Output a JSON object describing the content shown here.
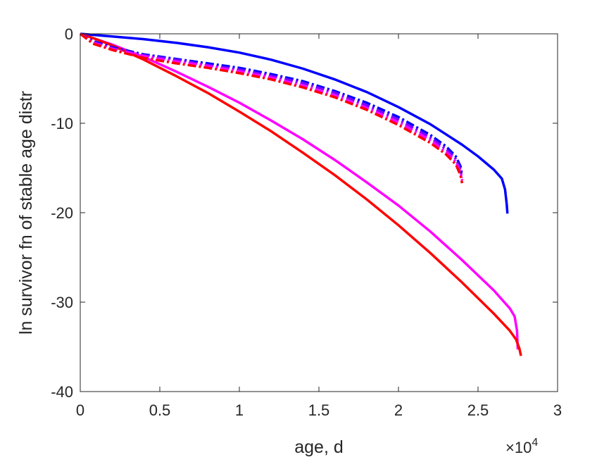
{
  "chart_data": {
    "type": "line",
    "title": "",
    "xlabel": "age, d",
    "ylabel": "ln survivor fn of stable age distr",
    "x_multiplier": "×10",
    "x_multiplier_exp": "4",
    "xlim": [
      0,
      30000
    ],
    "ylim": [
      -40,
      0
    ],
    "xticks": [
      0,
      5000,
      10000,
      15000,
      20000,
      25000,
      30000
    ],
    "xtick_labels": [
      "0",
      "0.5",
      "1",
      "1.5",
      "2",
      "2.5",
      "3"
    ],
    "yticks": [
      0,
      -10,
      -20,
      -30,
      -40
    ],
    "ytick_labels": [
      "0",
      "-10",
      "-20",
      "-30",
      "-40"
    ],
    "grid": false,
    "legend": "none",
    "series": [
      {
        "color": "#0000ff",
        "style": "solid",
        "points": [
          [
            0,
            0
          ],
          [
            2000,
            -0.3
          ],
          [
            4000,
            -0.6
          ],
          [
            6000,
            -1.0
          ],
          [
            8000,
            -1.5
          ],
          [
            10000,
            -2.1
          ],
          [
            12000,
            -2.9
          ],
          [
            14000,
            -3.9
          ],
          [
            16000,
            -5.1
          ],
          [
            18000,
            -6.5
          ],
          [
            20000,
            -8.2
          ],
          [
            22000,
            -10.1
          ],
          [
            24000,
            -12.4
          ],
          [
            25000,
            -13.7
          ],
          [
            26000,
            -15.2
          ],
          [
            26500,
            -16.2
          ],
          [
            26700,
            -17.4
          ],
          [
            26800,
            -19.0
          ],
          [
            26850,
            -20.1
          ]
        ]
      },
      {
        "color": "#ff00ff",
        "style": "solid",
        "points": [
          [
            0,
            0
          ],
          [
            1000,
            -0.6
          ],
          [
            2000,
            -1.2
          ],
          [
            4000,
            -2.6
          ],
          [
            6000,
            -4.2
          ],
          [
            8000,
            -5.9
          ],
          [
            10000,
            -7.7
          ],
          [
            12000,
            -9.7
          ],
          [
            14000,
            -11.8
          ],
          [
            16000,
            -14.1
          ],
          [
            18000,
            -16.6
          ],
          [
            20000,
            -19.2
          ],
          [
            22000,
            -22.1
          ],
          [
            24000,
            -25.3
          ],
          [
            26000,
            -28.7
          ],
          [
            27000,
            -30.7
          ],
          [
            27300,
            -31.6
          ],
          [
            27450,
            -33.2
          ],
          [
            27500,
            -35.3
          ]
        ]
      },
      {
        "color": "#ff0000",
        "style": "solid",
        "points": [
          [
            0,
            0
          ],
          [
            1000,
            -0.6
          ],
          [
            2000,
            -1.3
          ],
          [
            4000,
            -2.9
          ],
          [
            6000,
            -4.7
          ],
          [
            8000,
            -6.6
          ],
          [
            10000,
            -8.7
          ],
          [
            12000,
            -10.9
          ],
          [
            14000,
            -13.3
          ],
          [
            16000,
            -15.8
          ],
          [
            18000,
            -18.5
          ],
          [
            20000,
            -21.4
          ],
          [
            22000,
            -24.5
          ],
          [
            24000,
            -27.8
          ],
          [
            26000,
            -31.3
          ],
          [
            27000,
            -33.2
          ],
          [
            27400,
            -34.2
          ],
          [
            27600,
            -35.2
          ],
          [
            27700,
            -36.0
          ]
        ]
      },
      {
        "color": "#0000ff",
        "style": "dashdot",
        "points": [
          [
            0,
            0
          ],
          [
            800,
            -0.8
          ],
          [
            2000,
            -1.5
          ],
          [
            4000,
            -2.3
          ],
          [
            6000,
            -2.8
          ],
          [
            8000,
            -3.3
          ],
          [
            10000,
            -3.8
          ],
          [
            12000,
            -4.5
          ],
          [
            14000,
            -5.3
          ],
          [
            16000,
            -6.4
          ],
          [
            18000,
            -7.7
          ],
          [
            20000,
            -9.3
          ],
          [
            22000,
            -11.3
          ],
          [
            23000,
            -12.6
          ],
          [
            23600,
            -13.7
          ],
          [
            23900,
            -14.8
          ],
          [
            24000,
            -15.8
          ]
        ]
      },
      {
        "color": "#8000ff",
        "style": "dashdot",
        "points": [
          [
            0,
            0
          ],
          [
            800,
            -0.9
          ],
          [
            2000,
            -1.6
          ],
          [
            4000,
            -2.4
          ],
          [
            6000,
            -2.9
          ],
          [
            8000,
            -3.5
          ],
          [
            10000,
            -4.0
          ],
          [
            12000,
            -4.7
          ],
          [
            14000,
            -5.5
          ],
          [
            16000,
            -6.6
          ],
          [
            18000,
            -8.0
          ],
          [
            20000,
            -9.6
          ],
          [
            22000,
            -11.6
          ],
          [
            23000,
            -12.9
          ],
          [
            23600,
            -14.0
          ],
          [
            23900,
            -15.2
          ],
          [
            24000,
            -16.1
          ]
        ]
      },
      {
        "color": "#ff00ff",
        "style": "dashdot",
        "points": [
          [
            0,
            0
          ],
          [
            800,
            -1.0
          ],
          [
            2000,
            -1.7
          ],
          [
            4000,
            -2.5
          ],
          [
            6000,
            -3.1
          ],
          [
            8000,
            -3.6
          ],
          [
            10000,
            -4.2
          ],
          [
            12000,
            -4.9
          ],
          [
            14000,
            -5.8
          ],
          [
            16000,
            -6.9
          ],
          [
            18000,
            -8.3
          ],
          [
            20000,
            -9.9
          ],
          [
            22000,
            -11.9
          ],
          [
            23000,
            -13.2
          ],
          [
            23600,
            -14.3
          ],
          [
            23900,
            -15.5
          ],
          [
            24000,
            -16.4
          ]
        ]
      },
      {
        "color": "#ff0000",
        "style": "dashdot",
        "points": [
          [
            0,
            0
          ],
          [
            800,
            -1.1
          ],
          [
            2000,
            -1.8
          ],
          [
            4000,
            -2.7
          ],
          [
            6000,
            -3.3
          ],
          [
            8000,
            -3.8
          ],
          [
            10000,
            -4.4
          ],
          [
            12000,
            -5.1
          ],
          [
            14000,
            -6.0
          ],
          [
            16000,
            -7.1
          ],
          [
            18000,
            -8.5
          ],
          [
            20000,
            -10.2
          ],
          [
            22000,
            -12.2
          ],
          [
            23000,
            -13.5
          ],
          [
            23600,
            -14.6
          ],
          [
            23900,
            -15.8
          ],
          [
            24000,
            -16.7
          ]
        ]
      }
    ]
  }
}
